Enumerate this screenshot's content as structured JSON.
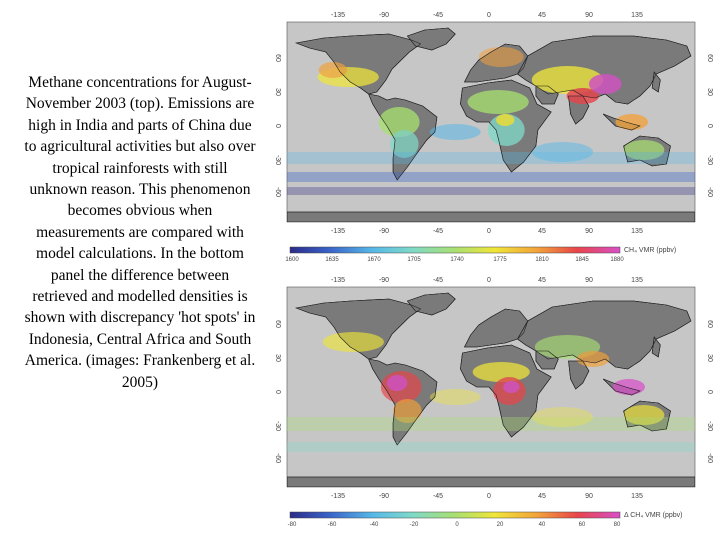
{
  "caption": {
    "text": "Methane concentrations for August-November 2003 (top). Emissions are high in India and parts of China due to agricultural activities but also over tropical rainforests with still unknown reason. This phenomenon becomes obvious when measurements are compared with model calculations. In the bottom panel the difference between retrieved and modelled densities is shown with discrepancy 'hot spots' in Indonesia, Central Africa and South America. (images: Frankenberg et al. 2005)"
  },
  "maps": [
    {
      "lon_ticks": [
        "-135",
        "-90",
        "-45",
        "0",
        "45",
        "90",
        "135"
      ],
      "lat_ticks": [
        "60",
        "30",
        "0",
        "-30",
        "-60"
      ],
      "colorbar_ticks": [
        "1600",
        "1635",
        "1670",
        "1705",
        "1740",
        "1775",
        "1810",
        "1845",
        "1880"
      ],
      "colorbar_label": "CH₄ VMR (ppbv)"
    },
    {
      "lon_ticks": [
        "-135",
        "-90",
        "-45",
        "0",
        "45",
        "90",
        "135"
      ],
      "lat_ticks": [
        "60",
        "30",
        "0",
        "-30",
        "-60"
      ],
      "colorbar_ticks": [
        "-80",
        "-60",
        "-40",
        "-20",
        "0",
        "20",
        "40",
        "60",
        "80"
      ],
      "colorbar_label": "Δ CH₄ VMR (ppbv)"
    }
  ],
  "colors": {
    "ocean": "#c6c6c6",
    "land": "#7a7a7a",
    "colorbar": [
      "#2b2b88",
      "#3a63c8",
      "#56b8e8",
      "#7fd9c8",
      "#a8e070",
      "#f0e638",
      "#f2a23a",
      "#e8454a",
      "#d84fc8"
    ]
  }
}
